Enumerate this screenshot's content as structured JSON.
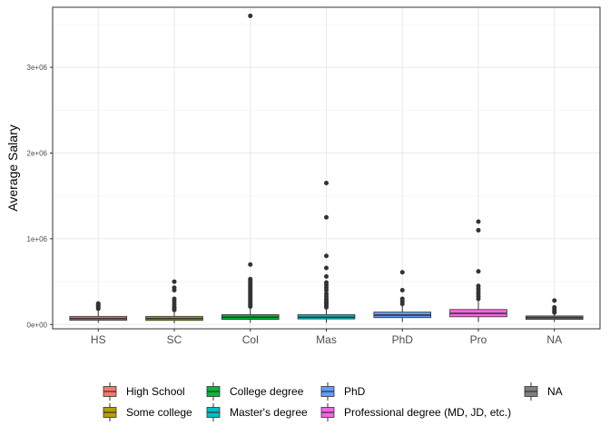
{
  "chart_data": {
    "type": "boxplot",
    "title": "",
    "xlabel": "",
    "ylabel": "Average Salary",
    "ylim": [
      -50000,
      3700000
    ],
    "y_ticks": [
      {
        "value": 0,
        "label": "0e+00"
      },
      {
        "value": 1000000,
        "label": "1e+06"
      },
      {
        "value": 2000000,
        "label": "2e+06"
      },
      {
        "value": 3000000,
        "label": "3e+06"
      }
    ],
    "grid": true,
    "legend_position": "bottom",
    "categories": [
      "HS",
      "SC",
      "Col",
      "Mas",
      "PhD",
      "Pro",
      "NA"
    ],
    "series": [
      {
        "name": "High School",
        "category": "HS",
        "color": "#F8766D",
        "whisker_low": 20000,
        "q1": 50000,
        "median": 70000,
        "q3": 95000,
        "whisker_high": 165000,
        "outliers": [
          185000,
          200000,
          215000,
          230000,
          245000
        ]
      },
      {
        "name": "Some college",
        "category": "SC",
        "color": "#B79F00",
        "whisker_low": 15000,
        "q1": 48000,
        "median": 70000,
        "q3": 95000,
        "whisker_high": 150000,
        "outliers": [
          170000,
          190000,
          210000,
          240000,
          270000,
          300000,
          400000,
          430000,
          500000
        ]
      },
      {
        "name": "College degree",
        "category": "Col",
        "color": "#00BA38",
        "whisker_low": 20000,
        "q1": 60000,
        "median": 85000,
        "q3": 115000,
        "whisker_high": 200000,
        "outliers": [
          210000,
          230000,
          250000,
          270000,
          290000,
          310000,
          330000,
          350000,
          370000,
          390000,
          410000,
          430000,
          450000,
          470000,
          490000,
          510000,
          530000,
          700000,
          3600000
        ]
      },
      {
        "name": "Master's degree",
        "category": "Mas",
        "color": "#00BFC4",
        "whisker_low": 20000,
        "q1": 65000,
        "median": 85000,
        "q3": 115000,
        "whisker_high": 190000,
        "outliers": [
          200000,
          220000,
          240000,
          260000,
          280000,
          300000,
          330000,
          360000,
          400000,
          430000,
          460000,
          490000,
          560000,
          660000,
          800000,
          1250000,
          1650000
        ]
      },
      {
        "name": "PhD",
        "category": "PhD",
        "color": "#619CFF",
        "whisker_low": 30000,
        "q1": 80000,
        "median": 110000,
        "q3": 145000,
        "whisker_high": 220000,
        "outliers": [
          240000,
          270000,
          300000,
          400000,
          610000
        ]
      },
      {
        "name": "Professional degree (MD, JD, etc.)",
        "category": "Pro",
        "color": "#F564E3",
        "whisker_low": 30000,
        "q1": 90000,
        "median": 130000,
        "q3": 175000,
        "whisker_high": 280000,
        "outliers": [
          300000,
          330000,
          360000,
          390000,
          420000,
          450000,
          620000,
          1100000,
          1200000
        ]
      },
      {
        "name": "NA",
        "category": "NA",
        "color": "#7F7F7F",
        "whisker_low": 30000,
        "q1": 60000,
        "median": 80000,
        "q3": 100000,
        "whisker_high": 130000,
        "outliers": [
          140000,
          160000,
          180000,
          200000,
          280000
        ]
      }
    ]
  }
}
